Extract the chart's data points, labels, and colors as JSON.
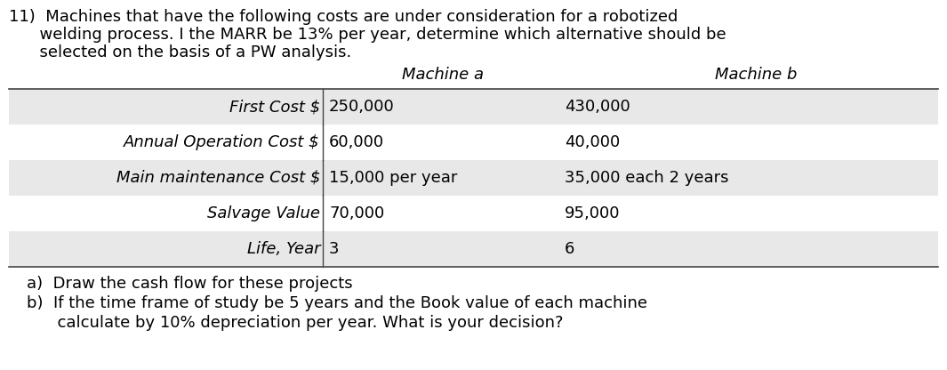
{
  "bg_color": "#ffffff",
  "col_headers": [
    "Machine a",
    "Machine b"
  ],
  "row_labels": [
    "First Cost $",
    "Annual Operation Cost $",
    "Main maintenance Cost $",
    "Salvage Value",
    "Life, Year"
  ],
  "col_a_values": [
    "250,000",
    "60,000",
    "15,000 per year",
    "70,000",
    "3"
  ],
  "col_b_values": [
    "430,000",
    "40,000",
    "35,000 each 2 years",
    "95,000",
    "6"
  ],
  "table_row_bg_odd": "#e8e8e8",
  "table_row_bg_even": "#ffffff",
  "divider_line_color": "#444444",
  "font_size": 13.0,
  "fig_width": 10.65,
  "fig_height": 4.16,
  "dpi": 100
}
